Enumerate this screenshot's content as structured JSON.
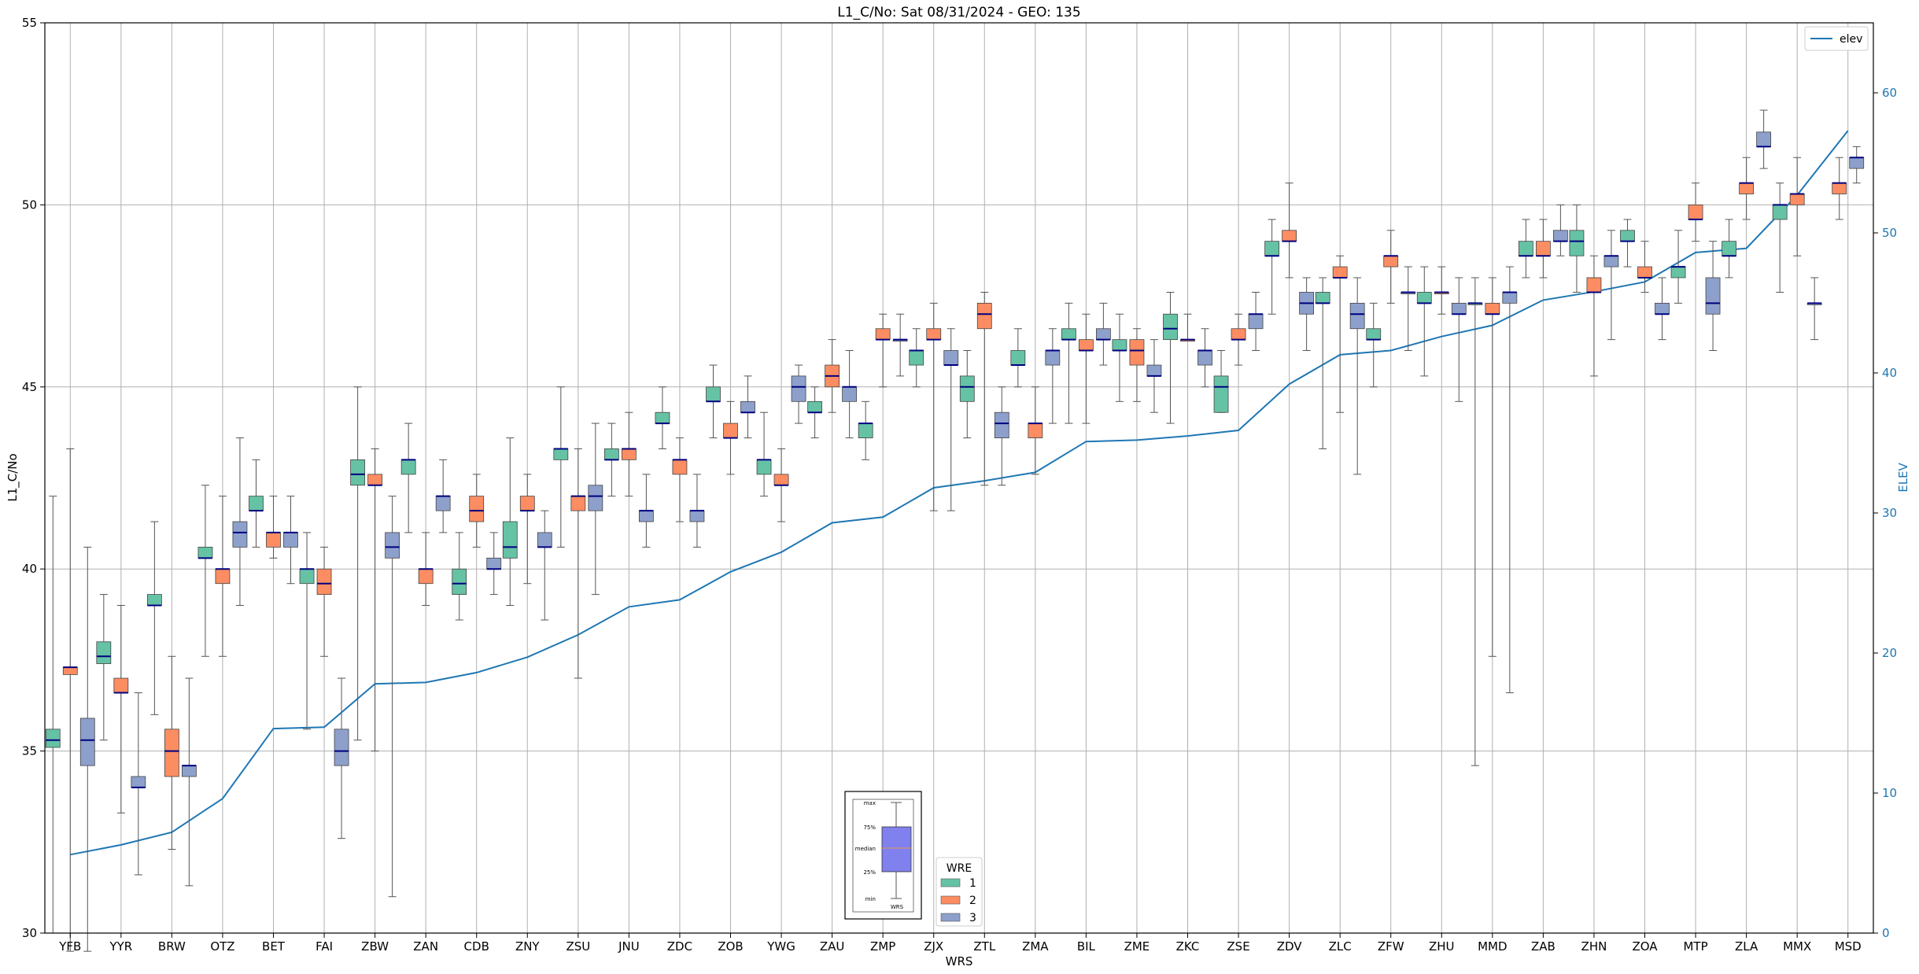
{
  "chart_data": {
    "type": "box",
    "title": "L1_C/No: Sat 08/31/2024 - GEO: 135",
    "xlabel": "WRS",
    "ylabel": "L1_C/No",
    "ylabel_right": "ELEV",
    "ylim": [
      30,
      55
    ],
    "ylim_right": [
      0,
      65
    ],
    "yticks": [
      "30",
      "35",
      "40",
      "45",
      "50",
      "55"
    ],
    "yticks_right": [
      "0",
      "10",
      "20",
      "30",
      "40",
      "50",
      "60"
    ],
    "grid": true,
    "categories": [
      "YFB",
      "YYR",
      "BRW",
      "OTZ",
      "BET",
      "FAI",
      "ZBW",
      "ZAN",
      "CDB",
      "ZNY",
      "ZSU",
      "JNU",
      "ZDC",
      "ZOB",
      "YWG",
      "ZAU",
      "ZMP",
      "ZJX",
      "ZTL",
      "ZMA",
      "BIL",
      "ZME",
      "ZKC",
      "ZSE",
      "ZDV",
      "ZLC",
      "ZFW",
      "ZHU",
      "MMD",
      "ZAB",
      "ZHN",
      "ZOA",
      "MTP",
      "ZLA",
      "MMX",
      "MSD"
    ],
    "wre_colors": {
      "1": "#66c2a5",
      "2": "#fc8d62",
      "3": "#8da0cb"
    },
    "boxes": [
      [
        [
          "1",
          30,
          35.1,
          35.3,
          35.6,
          42
        ],
        [
          "2",
          29.5,
          37.1,
          37.3,
          37.3,
          43.3
        ],
        [
          "3",
          29.5,
          34.6,
          35.3,
          35.9,
          40.6
        ]
      ],
      [
        [
          "1",
          35.3,
          37.4,
          37.6,
          38,
          39.3
        ],
        [
          "2",
          33.3,
          36.6,
          36.6,
          37,
          39
        ],
        [
          "3",
          31.6,
          34,
          34,
          34.3,
          36.6
        ]
      ],
      [
        [
          "1",
          36,
          39,
          39,
          39.3,
          41.3
        ],
        [
          "2",
          32.3,
          34.3,
          35,
          35.6,
          37.6
        ],
        [
          "3",
          31.3,
          34.3,
          34.6,
          34.6,
          37
        ]
      ],
      [
        [
          "1",
          37.6,
          40.3,
          40.3,
          40.6,
          42.3
        ],
        [
          "2",
          37.6,
          39.6,
          40,
          40,
          42
        ],
        [
          "3",
          39,
          40.6,
          41,
          41.3,
          43.6
        ]
      ],
      [
        [
          "1",
          40.6,
          41.6,
          41.6,
          42,
          43
        ],
        [
          "2",
          40.3,
          40.6,
          41,
          41,
          42
        ],
        [
          "3",
          39.6,
          40.6,
          41,
          41,
          42
        ]
      ],
      [
        [
          "1",
          35.6,
          39.6,
          40,
          40,
          41
        ],
        [
          "2",
          37.6,
          39.3,
          39.6,
          40,
          40.6
        ],
        [
          "3",
          32.6,
          34.6,
          35,
          35.6,
          37
        ]
      ],
      [
        [
          "1",
          35.3,
          42.3,
          42.6,
          43,
          45
        ],
        [
          "2",
          35,
          42.3,
          42.3,
          42.6,
          43.3
        ],
        [
          "3",
          31,
          40.3,
          40.6,
          41,
          42
        ]
      ],
      [
        [
          "1",
          41,
          42.6,
          43,
          43,
          44
        ],
        [
          "2",
          39,
          39.6,
          40,
          40,
          41
        ],
        [
          "3",
          41,
          41.6,
          42,
          42,
          43
        ]
      ],
      [
        [
          "1",
          38.6,
          39.3,
          39.6,
          40,
          41
        ],
        [
          "2",
          40.6,
          41.3,
          41.6,
          42,
          42.6
        ],
        [
          "3",
          39.3,
          40,
          40,
          40.3,
          41
        ]
      ],
      [
        [
          "1",
          39,
          40.3,
          40.6,
          41.3,
          43.6
        ],
        [
          "2",
          39.6,
          41.6,
          41.6,
          42,
          42.6
        ],
        [
          "3",
          38.6,
          40.6,
          40.6,
          41,
          41.6
        ]
      ],
      [
        [
          "1",
          40.6,
          43,
          43.3,
          43.3,
          45
        ],
        [
          "2",
          37,
          41.6,
          42,
          42,
          43.3
        ],
        [
          "3",
          39.3,
          41.6,
          42,
          42.3,
          44
        ]
      ],
      [
        [
          "1",
          42,
          43,
          43,
          43.3,
          44
        ],
        [
          "2",
          42,
          43,
          43.3,
          43.3,
          44.3
        ],
        [
          "3",
          40.6,
          41.3,
          41.6,
          41.6,
          42.6
        ]
      ],
      [
        [
          "1",
          43.3,
          44,
          44,
          44.3,
          45
        ],
        [
          "2",
          41.3,
          42.6,
          43,
          43,
          43.6
        ],
        [
          "3",
          40.6,
          41.3,
          41.6,
          41.6,
          42.6
        ]
      ],
      [
        [
          "1",
          43.6,
          44.6,
          44.6,
          45,
          45.6
        ],
        [
          "2",
          42.6,
          43.6,
          43.6,
          44,
          44.6
        ],
        [
          "3",
          43.6,
          44.3,
          44.3,
          44.6,
          45.3
        ]
      ],
      [
        [
          "1",
          42,
          42.6,
          43,
          43,
          44.3
        ],
        [
          "2",
          41.3,
          42.3,
          42.3,
          42.6,
          43.3
        ],
        [
          "3",
          44,
          44.6,
          45,
          45.3,
          45.6
        ]
      ],
      [
        [
          "1",
          43.6,
          44.3,
          44.3,
          44.6,
          45
        ],
        [
          "2",
          44.3,
          45,
          45.3,
          45.6,
          46.3
        ],
        [
          "3",
          43.6,
          44.6,
          45,
          45,
          46
        ]
      ],
      [
        [
          "1",
          43,
          43.6,
          44,
          44,
          44.6
        ],
        [
          "2",
          45,
          46.3,
          46.3,
          46.6,
          47
        ],
        [
          "3",
          45.3,
          46.3,
          46.3,
          46.3,
          47
        ]
      ],
      [
        [
          "1",
          45,
          45.6,
          46,
          46,
          46.6
        ],
        [
          "2",
          41.6,
          46.3,
          46.3,
          46.6,
          47.3
        ],
        [
          "3",
          41.6,
          45.6,
          45.6,
          46,
          46.6
        ]
      ],
      [
        [
          "1",
          43.6,
          44.6,
          45,
          45.3,
          46
        ],
        [
          "2",
          42.3,
          46.6,
          47,
          47.3,
          47.6
        ],
        [
          "3",
          42.3,
          43.6,
          44,
          44.3,
          45
        ]
      ],
      [
        [
          "1",
          45,
          45.6,
          45.6,
          46,
          46.6
        ],
        [
          "2",
          42.6,
          43.6,
          44,
          44,
          45
        ],
        [
          "3",
          44,
          45.6,
          46,
          46,
          46.6
        ]
      ],
      [
        [
          "1",
          44,
          46.3,
          46.3,
          46.6,
          47.3
        ],
        [
          "2",
          44,
          46,
          46,
          46.3,
          47
        ],
        [
          "3",
          45.6,
          46.3,
          46.3,
          46.6,
          47.3
        ]
      ],
      [
        [
          "1",
          44.6,
          46,
          46,
          46.3,
          47
        ],
        [
          "2",
          44.6,
          45.6,
          46,
          46.3,
          46.6
        ],
        [
          "3",
          44.3,
          45.3,
          45.3,
          45.6,
          46.3
        ]
      ],
      [
        [
          "1",
          44,
          46.3,
          46.6,
          47,
          47.6
        ],
        [
          "2",
          46.3,
          46.3,
          46.3,
          46.3,
          47
        ],
        [
          "3",
          45,
          45.6,
          46,
          46,
          46.6
        ]
      ],
      [
        [
          "1",
          44.3,
          44.3,
          45,
          45.3,
          46
        ],
        [
          "2",
          45.6,
          46.3,
          46.3,
          46.6,
          47
        ],
        [
          "3",
          46,
          46.6,
          47,
          47,
          47.6
        ]
      ],
      [
        [
          "1",
          47,
          48.6,
          48.6,
          49,
          49.6
        ],
        [
          "2",
          48,
          49,
          49,
          49.3,
          50.6
        ],
        [
          "3",
          46,
          47,
          47.3,
          47.6,
          48
        ]
      ],
      [
        [
          "1",
          43.3,
          47.3,
          47.3,
          47.6,
          48
        ],
        [
          "2",
          44.3,
          48,
          48,
          48.3,
          48.6
        ],
        [
          "3",
          42.6,
          46.6,
          47,
          47.3,
          48
        ]
      ],
      [
        [
          "1",
          45,
          46.3,
          46.3,
          46.6,
          47.3
        ],
        [
          "2",
          47.3,
          48.3,
          48.6,
          48.6,
          49.3
        ],
        [
          "3",
          46,
          47.6,
          47.6,
          47.6,
          48.3
        ]
      ],
      [
        [
          "1",
          45.3,
          47.3,
          47.3,
          47.6,
          48.3
        ],
        [
          "2",
          47,
          47.6,
          47.6,
          47.6,
          48.3
        ],
        [
          "3",
          44.6,
          47,
          47,
          47.3,
          48
        ]
      ],
      [
        [
          "1",
          34.6,
          47.3,
          47.3,
          47.3,
          48
        ],
        [
          "2",
          37.6,
          47,
          47,
          47.3,
          48
        ],
        [
          "3",
          36.6,
          47.3,
          47.6,
          47.6,
          48.3
        ]
      ],
      [
        [
          "1",
          48,
          48.6,
          48.6,
          49,
          49.6
        ],
        [
          "2",
          48,
          48.6,
          48.6,
          49,
          49.6
        ],
        [
          "3",
          48.6,
          49,
          49,
          49.3,
          50
        ]
      ],
      [
        [
          "1",
          47.6,
          48.6,
          49,
          49.3,
          50
        ],
        [
          "2",
          45.3,
          47.6,
          47.6,
          48,
          48.6
        ],
        [
          "3",
          46.3,
          48.3,
          48.6,
          48.6,
          49.3
        ]
      ],
      [
        [
          "1",
          48.3,
          49,
          49,
          49.3,
          49.6
        ],
        [
          "2",
          47.6,
          48,
          48,
          48.3,
          49
        ],
        [
          "3",
          46.3,
          47,
          47,
          47.3,
          48
        ]
      ],
      [
        [
          "1",
          47.3,
          48,
          48.3,
          48.3,
          49.3
        ],
        [
          "2",
          49,
          49.6,
          49.6,
          50,
          50.6
        ],
        [
          "3",
          46,
          47,
          47.3,
          48,
          49
        ]
      ],
      [
        [
          "1",
          48,
          48.6,
          48.6,
          49,
          49.6
        ],
        [
          "2",
          49.6,
          50.3,
          50.6,
          50.6,
          51.3
        ],
        [
          "3",
          51,
          51.6,
          51.6,
          52,
          52.6
        ]
      ],
      [
        [
          "1",
          47.6,
          49.6,
          50,
          50,
          50.6
        ],
        [
          "2",
          48.6,
          50,
          50.3,
          50.3,
          51.3
        ],
        [
          "3",
          46.3,
          47.3,
          47.3,
          47.3,
          48
        ]
      ],
      [
        [
          "2",
          49.6,
          50.3,
          50.6,
          50.6,
          51.3
        ],
        [
          "3",
          50.6,
          51,
          51.3,
          51.3,
          51.6
        ]
      ]
    ],
    "elev_series": {
      "name": "elev",
      "values": [
        5.6,
        6.3,
        7.2,
        9.6,
        14.6,
        14.7,
        17.8,
        17.9,
        18.6,
        19.7,
        21.3,
        23.3,
        23.8,
        25.8,
        27.2,
        29.3,
        29.7,
        31.8,
        32.3,
        32.9,
        35.1,
        35.2,
        35.5,
        35.9,
        39.2,
        41.3,
        41.6,
        42.6,
        43.4,
        45.2,
        45.8,
        46.5,
        48.6,
        48.9,
        52.7,
        57.3
      ]
    },
    "legend_elev": "elev",
    "legend_wre": {
      "title": "WRE",
      "entries": [
        "1",
        "2",
        "3"
      ]
    },
    "key_labels": [
      "max",
      "75%",
      "median",
      "25%",
      "min",
      "WRS"
    ]
  }
}
